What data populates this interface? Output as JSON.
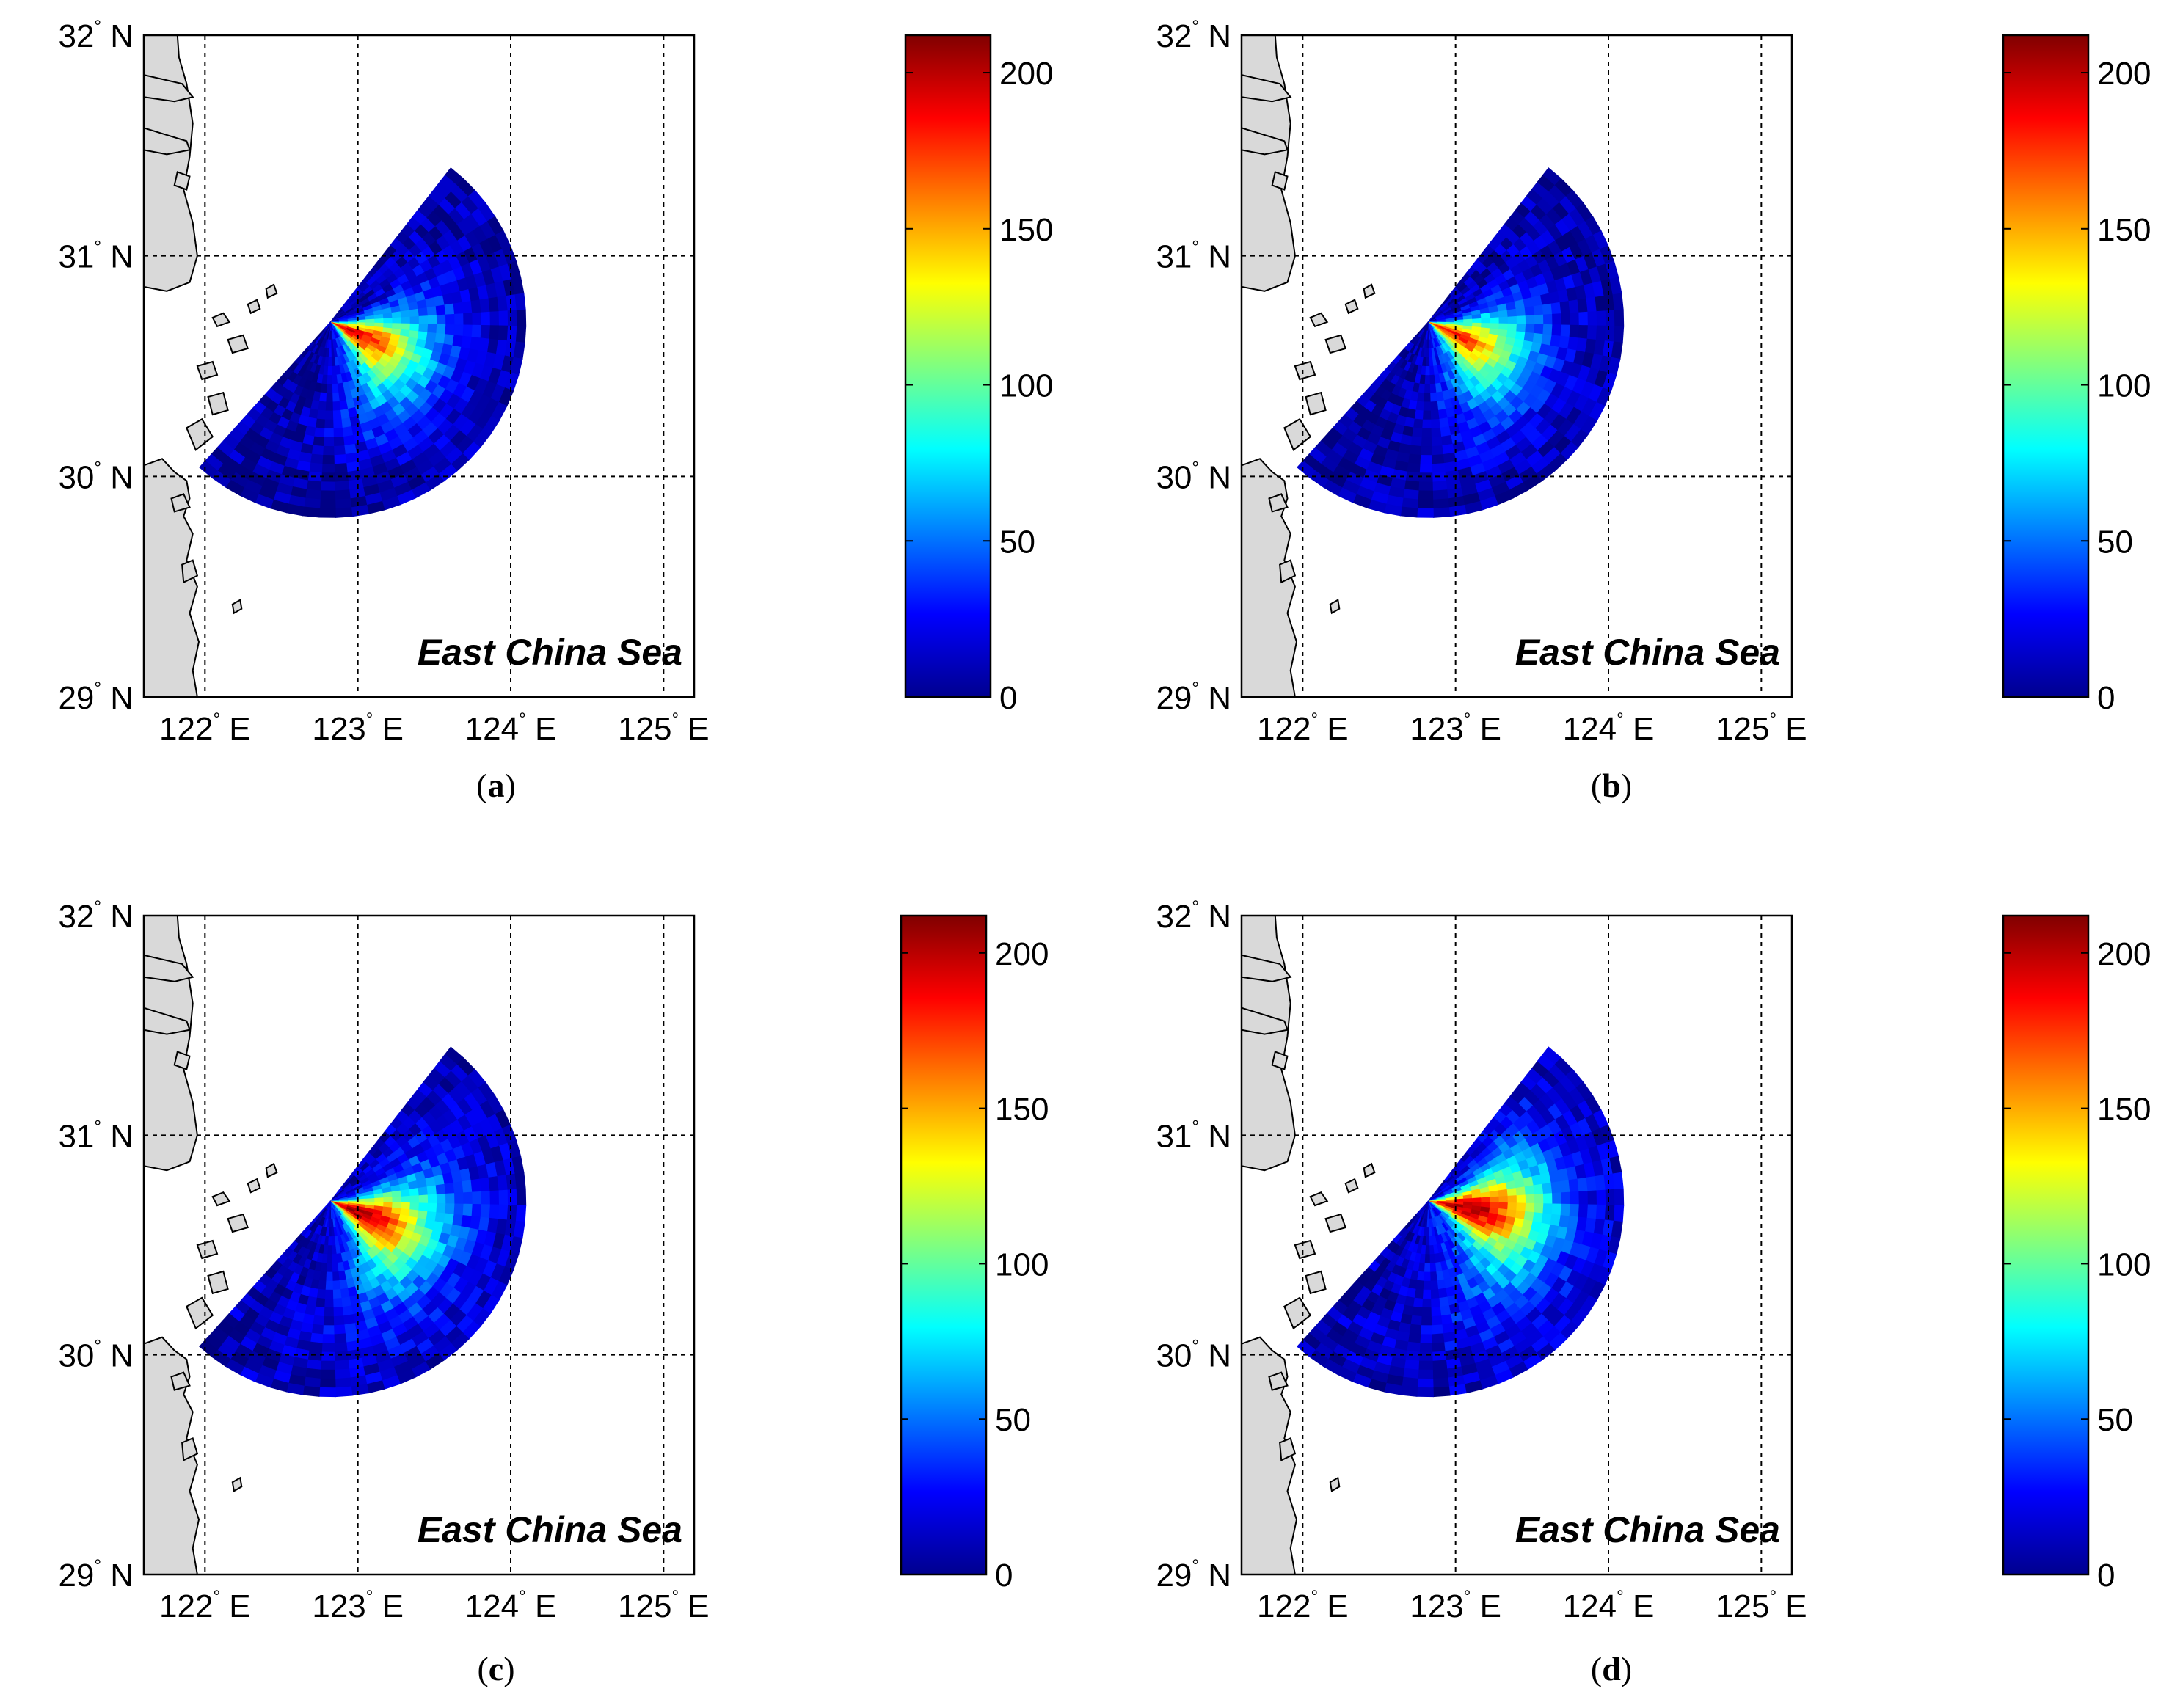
{
  "chart_data": [
    {
      "type": "heatmap",
      "panel": "a",
      "caption_open": "(",
      "caption_letter": "a",
      "caption_close": ")",
      "annotation": "East China Sea",
      "x_range": [
        121.6,
        125.2
      ],
      "y_range": [
        29.0,
        32.0
      ],
      "x_ticks": [
        {
          "value": 122,
          "deg": "122",
          "suffix": "E"
        },
        {
          "value": 123,
          "deg": "123",
          "suffix": "E"
        },
        {
          "value": 124,
          "deg": "124",
          "suffix": "E"
        },
        {
          "value": 125,
          "deg": "125",
          "suffix": "E"
        }
      ],
      "y_ticks": [
        {
          "value": 29,
          "deg": "29",
          "suffix": "N"
        },
        {
          "value": 30,
          "deg": "30",
          "suffix": "N"
        },
        {
          "value": 31,
          "deg": "31",
          "suffix": "N"
        },
        {
          "value": 32,
          "deg": "32",
          "suffix": "N"
        }
      ],
      "grid": "dashed",
      "radar_site": {
        "lon": 122.82,
        "lat": 30.7
      },
      "sector": {
        "bearing_start_deg": 38,
        "bearing_end_deg": 222,
        "max_range_deg": 1.28
      },
      "peak": {
        "value": 190,
        "bearing_deg": 115,
        "range_frac": 0.12
      },
      "background_value": 8,
      "colorbar": {
        "min": 0,
        "max": 212,
        "ticks": [
          0,
          50,
          100,
          150,
          200
        ]
      }
    },
    {
      "type": "heatmap",
      "panel": "b",
      "caption_open": "(",
      "caption_letter": "b",
      "caption_close": ")",
      "annotation": "East China Sea",
      "x_range": [
        121.6,
        125.2
      ],
      "y_range": [
        29.0,
        32.0
      ],
      "x_ticks": [
        {
          "value": 122,
          "deg": "122",
          "suffix": "E"
        },
        {
          "value": 123,
          "deg": "123",
          "suffix": "E"
        },
        {
          "value": 124,
          "deg": "124",
          "suffix": "E"
        },
        {
          "value": 125,
          "deg": "125",
          "suffix": "E"
        }
      ],
      "y_ticks": [
        {
          "value": 29,
          "deg": "29",
          "suffix": "N"
        },
        {
          "value": 30,
          "deg": "30",
          "suffix": "N"
        },
        {
          "value": 31,
          "deg": "31",
          "suffix": "N"
        },
        {
          "value": 32,
          "deg": "32",
          "suffix": "N"
        }
      ],
      "grid": "dashed",
      "radar_site": {
        "lon": 122.82,
        "lat": 30.7
      },
      "sector": {
        "bearing_start_deg": 38,
        "bearing_end_deg": 222,
        "max_range_deg": 1.28
      },
      "peak": {
        "value": 180,
        "bearing_deg": 115,
        "range_frac": 0.12
      },
      "background_value": 8,
      "colorbar": {
        "min": 0,
        "max": 212,
        "ticks": [
          0,
          50,
          100,
          150,
          200
        ]
      }
    },
    {
      "type": "heatmap",
      "panel": "c",
      "caption_open": "(",
      "caption_letter": "c",
      "caption_close": ")",
      "annotation": "East China Sea",
      "x_range": [
        121.6,
        125.2
      ],
      "y_range": [
        29.0,
        32.0
      ],
      "x_ticks": [
        {
          "value": 122,
          "deg": "122",
          "suffix": "E"
        },
        {
          "value": 123,
          "deg": "123",
          "suffix": "E"
        },
        {
          "value": 124,
          "deg": "124",
          "suffix": "E"
        },
        {
          "value": 125,
          "deg": "125",
          "suffix": "E"
        }
      ],
      "y_ticks": [
        {
          "value": 29,
          "deg": "29",
          "suffix": "N"
        },
        {
          "value": 30,
          "deg": "30",
          "suffix": "N"
        },
        {
          "value": 31,
          "deg": "31",
          "suffix": "N"
        },
        {
          "value": 32,
          "deg": "32",
          "suffix": "N"
        }
      ],
      "grid": "dashed",
      "radar_site": {
        "lon": 122.82,
        "lat": 30.7
      },
      "sector": {
        "bearing_start_deg": 38,
        "bearing_end_deg": 222,
        "max_range_deg": 1.28
      },
      "peak": {
        "value": 205,
        "bearing_deg": 112,
        "range_frac": 0.15
      },
      "background_value": 12,
      "colorbar": {
        "min": 0,
        "max": 212,
        "ticks": [
          0,
          50,
          100,
          150,
          200
        ]
      }
    },
    {
      "type": "heatmap",
      "panel": "d",
      "caption_open": "(",
      "caption_letter": "d",
      "caption_close": ")",
      "annotation": "East China Sea",
      "x_range": [
        121.6,
        125.2
      ],
      "y_range": [
        29.0,
        32.0
      ],
      "x_ticks": [
        {
          "value": 122,
          "deg": "122",
          "suffix": "E"
        },
        {
          "value": 123,
          "deg": "123",
          "suffix": "E"
        },
        {
          "value": 124,
          "deg": "124",
          "suffix": "E"
        },
        {
          "value": 125,
          "deg": "125",
          "suffix": "E"
        }
      ],
      "y_ticks": [
        {
          "value": 29,
          "deg": "29",
          "suffix": "N"
        },
        {
          "value": 30,
          "deg": "30",
          "suffix": "N"
        },
        {
          "value": 31,
          "deg": "31",
          "suffix": "N"
        },
        {
          "value": 32,
          "deg": "32",
          "suffix": "N"
        }
      ],
      "grid": "dashed",
      "radar_site": {
        "lon": 122.82,
        "lat": 30.7
      },
      "sector": {
        "bearing_start_deg": 38,
        "bearing_end_deg": 222,
        "max_range_deg": 1.28
      },
      "peak": {
        "value": 205,
        "bearing_deg": 100,
        "range_frac": 0.2
      },
      "background_value": 12,
      "colorbar": {
        "min": 0,
        "max": 212,
        "ticks": [
          0,
          50,
          100,
          150,
          200
        ]
      }
    }
  ]
}
